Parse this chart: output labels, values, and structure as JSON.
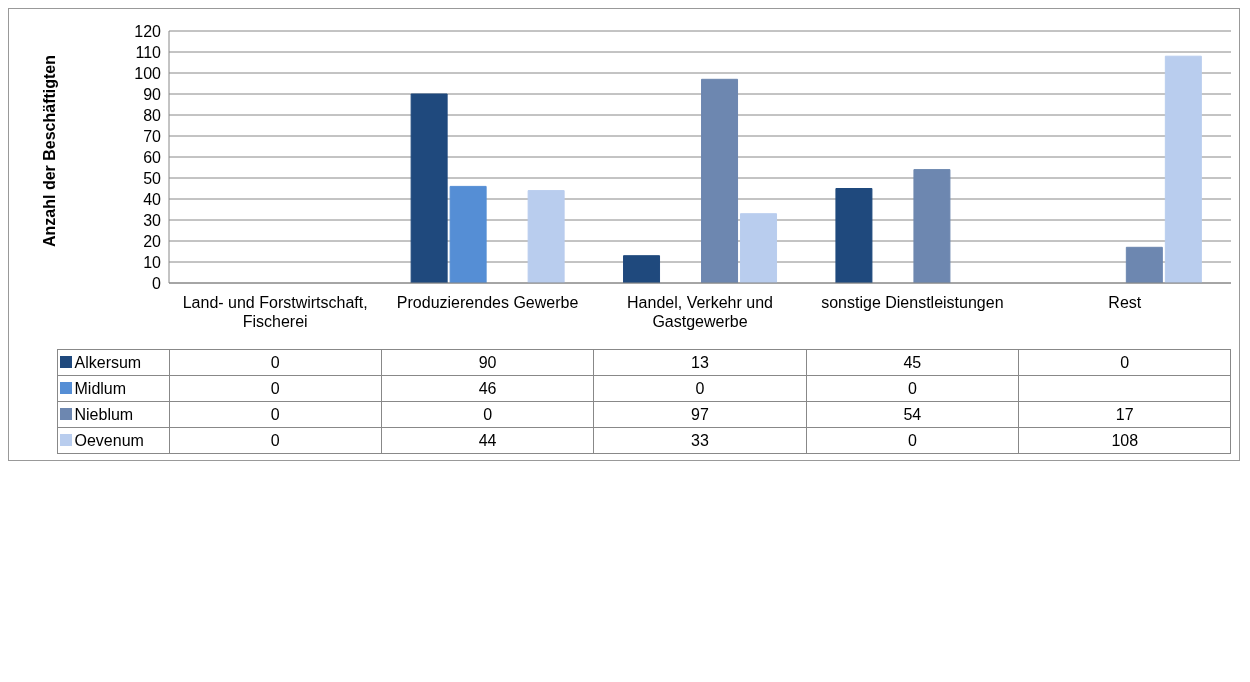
{
  "chart_data": {
    "type": "bar",
    "ylabel": "Anzahl der Beschäftigten",
    "categories": [
      "Land- und Forstwirtschaft, Fischerei",
      "Produzierendes Gewerbe",
      "Handel, Verkehr und Gastgewerbe",
      "sonstige Dienstleistungen",
      "Rest"
    ],
    "series": [
      {
        "name": "Alkersum",
        "color": "#1f497d",
        "values": [
          0,
          90,
          13,
          45,
          0
        ]
      },
      {
        "name": "Midlum",
        "color": "#558ed5",
        "values": [
          0,
          46,
          0,
          0,
          null
        ]
      },
      {
        "name": "Nieblum",
        "color": "#6d87b0",
        "values": [
          0,
          0,
          97,
          54,
          17
        ]
      },
      {
        "name": "Oevenum",
        "color": "#b9cdee",
        "values": [
          0,
          44,
          33,
          0,
          108
        ]
      }
    ],
    "ylim": [
      0,
      120
    ],
    "yticks": [
      0,
      10,
      20,
      30,
      40,
      50,
      60,
      70,
      80,
      90,
      100,
      110,
      120
    ],
    "grid": "y",
    "legend": "bottom",
    "data_labels": true
  }
}
